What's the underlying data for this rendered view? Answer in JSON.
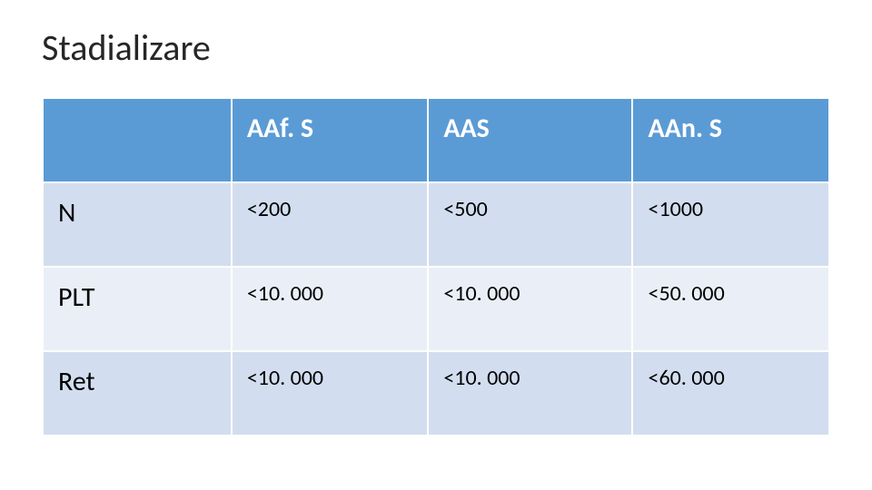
{
  "title": "Stadializare",
  "table": {
    "type": "table",
    "header_bg": "#5b9bd5",
    "header_fg": "#ffffff",
    "row_bg_odd": "#d2deef",
    "row_bg_even": "#eaeff7",
    "border_color": "#ffffff",
    "title_fontsize": 40,
    "header_fontsize": 30,
    "rowlabel_fontsize": 30,
    "cell_fontsize": 24,
    "columns": [
      "",
      "AAf. S",
      "AAS",
      "AAn. S"
    ],
    "rows": [
      {
        "label": "N",
        "cells": [
          "<200",
          "<500",
          "<1000"
        ]
      },
      {
        "label": "PLT",
        "cells": [
          "<10. 000",
          "<10. 000",
          "<50. 000"
        ]
      },
      {
        "label": "Ret",
        "cells": [
          "<10. 000",
          "<10. 000",
          "<60. 000"
        ]
      }
    ]
  }
}
